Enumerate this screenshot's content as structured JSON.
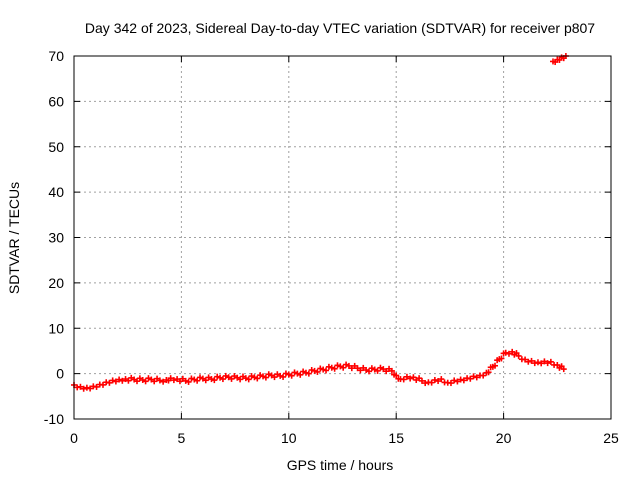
{
  "chart_data": {
    "type": "scatter",
    "title": "Day 342 of 2023, Sidereal Day-to-day VTEC variation (SDTVAR) for receiver p807",
    "xlabel": "GPS time / hours",
    "ylabel": "SDTVAR / TECUs",
    "xlim": [
      0,
      25
    ],
    "ylim": [
      -10,
      70
    ],
    "xticks": [
      "0",
      "5",
      "10",
      "15",
      "20",
      "25"
    ],
    "yticks": [
      "-10",
      "0",
      "10",
      "20",
      "30",
      "40",
      "50",
      "60",
      "70"
    ],
    "grid": true,
    "marker": "plus",
    "color": "#ff0000",
    "series": [
      {
        "name": "SDTVAR",
        "x": [
          0.0,
          0.3,
          0.6,
          0.9,
          1.2,
          1.5,
          1.8,
          2.1,
          2.4,
          2.8,
          3.2,
          3.6,
          4.0,
          4.3,
          4.5,
          4.8,
          5.2,
          5.6,
          6.0,
          6.4,
          6.8,
          7.2,
          7.6,
          8.0,
          8.4,
          8.8,
          9.2,
          9.6,
          10.0,
          10.4,
          10.8,
          11.2,
          11.6,
          12.0,
          12.4,
          12.8,
          13.2,
          13.6,
          14.0,
          14.4,
          14.8,
          15.0,
          15.2,
          15.5,
          15.8,
          16.2,
          16.5,
          16.8,
          17.1,
          17.4,
          17.7,
          18.0,
          18.3,
          18.6,
          18.9,
          19.2,
          19.5,
          19.8,
          20.1,
          20.4,
          20.7,
          21.0,
          21.3,
          21.6,
          21.9,
          22.2,
          22.5,
          22.8,
          22.3,
          22.5,
          22.7,
          22.9
        ],
        "y": [
          -2.5,
          -2.9,
          -3.1,
          -2.8,
          -2.4,
          -1.9,
          -1.5,
          -1.3,
          -1.2,
          -1.3,
          -1.4,
          -1.3,
          -1.5,
          -1.4,
          -1.0,
          -1.2,
          -1.6,
          -1.3,
          -1.1,
          -1.2,
          -0.9,
          -0.8,
          -0.9,
          -1.0,
          -0.8,
          -0.6,
          -0.4,
          -0.5,
          -0.2,
          0.0,
          0.2,
          0.6,
          0.9,
          1.3,
          1.6,
          1.7,
          1.2,
          0.8,
          0.9,
          1.0,
          0.6,
          -0.4,
          -1.2,
          -0.7,
          -0.8,
          -1.6,
          -1.9,
          -1.4,
          -1.2,
          -2.0,
          -1.5,
          -1.3,
          -1.0,
          -0.6,
          -0.4,
          0.2,
          1.5,
          3.2,
          4.6,
          4.8,
          3.9,
          3.1,
          2.8,
          2.5,
          2.7,
          2.6,
          1.9,
          1.0,
          68.8,
          69.2,
          69.7,
          70.0
        ]
      }
    ]
  }
}
